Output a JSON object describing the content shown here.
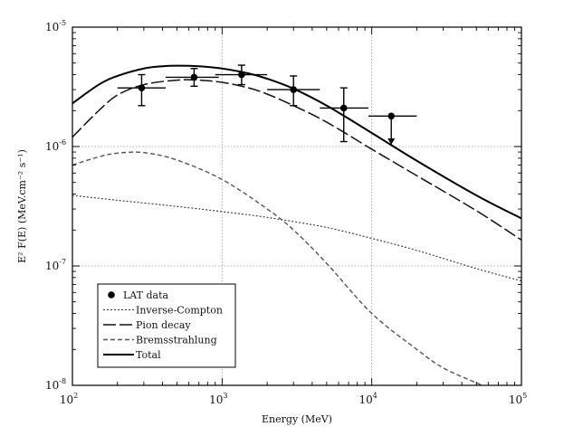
{
  "chart_data": {
    "type": "line",
    "title": "",
    "xlabel": "Energy (MeV)",
    "ylabel": "E² F(E) (MeV.cm⁻² s⁻¹)",
    "x_scale": "log",
    "y_scale": "log",
    "xlim": [
      100,
      100000
    ],
    "ylim": [
      1e-08,
      1e-05
    ],
    "grid": true,
    "legend_position": "bottom-left",
    "x_ticks": [
      {
        "base": "10",
        "exp": "2",
        "value": 100
      },
      {
        "base": "10",
        "exp": "3",
        "value": 1000
      },
      {
        "base": "10",
        "exp": "4",
        "value": 10000
      },
      {
        "base": "10",
        "exp": "5",
        "value": 100000
      }
    ],
    "y_ticks": [
      {
        "base": "10",
        "exp": "-8",
        "value": 1e-08
      },
      {
        "base": "10",
        "exp": "-7",
        "value": 1e-07
      },
      {
        "base": "10",
        "exp": "-6",
        "value": 1e-06
      },
      {
        "base": "10",
        "exp": "-5",
        "value": 1e-05
      }
    ],
    "lat_data": {
      "name": "LAT data",
      "points": [
        {
          "x": 290,
          "y": 3.1e-06,
          "xerr": [
            200,
            420
          ],
          "yerr": [
            2.2e-06,
            4e-06
          ],
          "upper_limit": false
        },
        {
          "x": 650,
          "y": 3.8e-06,
          "xerr": [
            420,
            950
          ],
          "yerr": [
            3.2e-06,
            4.5e-06
          ],
          "upper_limit": false
        },
        {
          "x": 1350,
          "y": 4e-06,
          "xerr": [
            900,
            2000
          ],
          "yerr": [
            3.3e-06,
            4.8e-06
          ],
          "upper_limit": false
        },
        {
          "x": 3000,
          "y": 3e-06,
          "xerr": [
            2000,
            4500
          ],
          "yerr": [
            2.2e-06,
            3.9e-06
          ],
          "upper_limit": false
        },
        {
          "x": 6500,
          "y": 2.1e-06,
          "xerr": [
            4500,
            9500
          ],
          "yerr": [
            1.1e-06,
            3.1e-06
          ],
          "upper_limit": false
        },
        {
          "x": 13500,
          "y": 1.8e-06,
          "xerr": [
            9500,
            20000
          ],
          "yerr": [
            1e-06,
            1.8e-06
          ],
          "upper_limit": true
        }
      ]
    },
    "series": [
      {
        "name": "Inverse-Compton",
        "style": "dotted",
        "x": [
          100,
          200,
          500,
          1000,
          2000,
          5000,
          10000,
          20000,
          50000,
          100000
        ],
        "y": [
          3.9e-07,
          3.55e-07,
          3.15e-07,
          2.85e-07,
          2.55e-07,
          2.1e-07,
          1.7e-07,
          1.35e-07,
          9.5e-08,
          7.5e-08
        ]
      },
      {
        "name": "Pion decay",
        "style": "long-dash",
        "x": [
          100,
          150,
          200,
          300,
          500,
          700,
          1000,
          1500,
          2000,
          3000,
          5000,
          10000,
          20000,
          50000,
          100000
        ],
        "y": [
          1.2e-06,
          2e-06,
          2.7e-06,
          3.3e-06,
          3.6e-06,
          3.6e-06,
          3.45e-06,
          3.1e-06,
          2.75e-06,
          2.2e-06,
          1.6e-06,
          9.5e-07,
          5.7e-07,
          2.9e-07,
          1.65e-07
        ]
      },
      {
        "name": "Bremsstrahlung",
        "style": "dashed",
        "x": [
          100,
          150,
          200,
          300,
          500,
          1000,
          2000,
          3000,
          5000,
          10000,
          20000,
          30000,
          50000,
          55000
        ],
        "y": [
          7e-07,
          8.2e-07,
          8.8e-07,
          8.9e-07,
          7.7e-07,
          5.3e-07,
          3e-07,
          2e-07,
          1.05e-07,
          4e-08,
          2e-08,
          1.4e-08,
          1.05e-08,
          1e-08
        ]
      },
      {
        "name": "Total",
        "style": "solid",
        "x": [
          100,
          150,
          200,
          300,
          400,
          500,
          700,
          1000,
          1500,
          2000,
          3000,
          5000,
          10000,
          20000,
          50000,
          100000
        ],
        "y": [
          2.3e-06,
          3.3e-06,
          3.9e-06,
          4.5e-06,
          4.7e-06,
          4.75e-06,
          4.7e-06,
          4.5e-06,
          4.1e-06,
          3.7e-06,
          3.05e-06,
          2.2e-06,
          1.3e-06,
          7.6e-07,
          3.9e-07,
          2.5e-07
        ]
      }
    ]
  }
}
